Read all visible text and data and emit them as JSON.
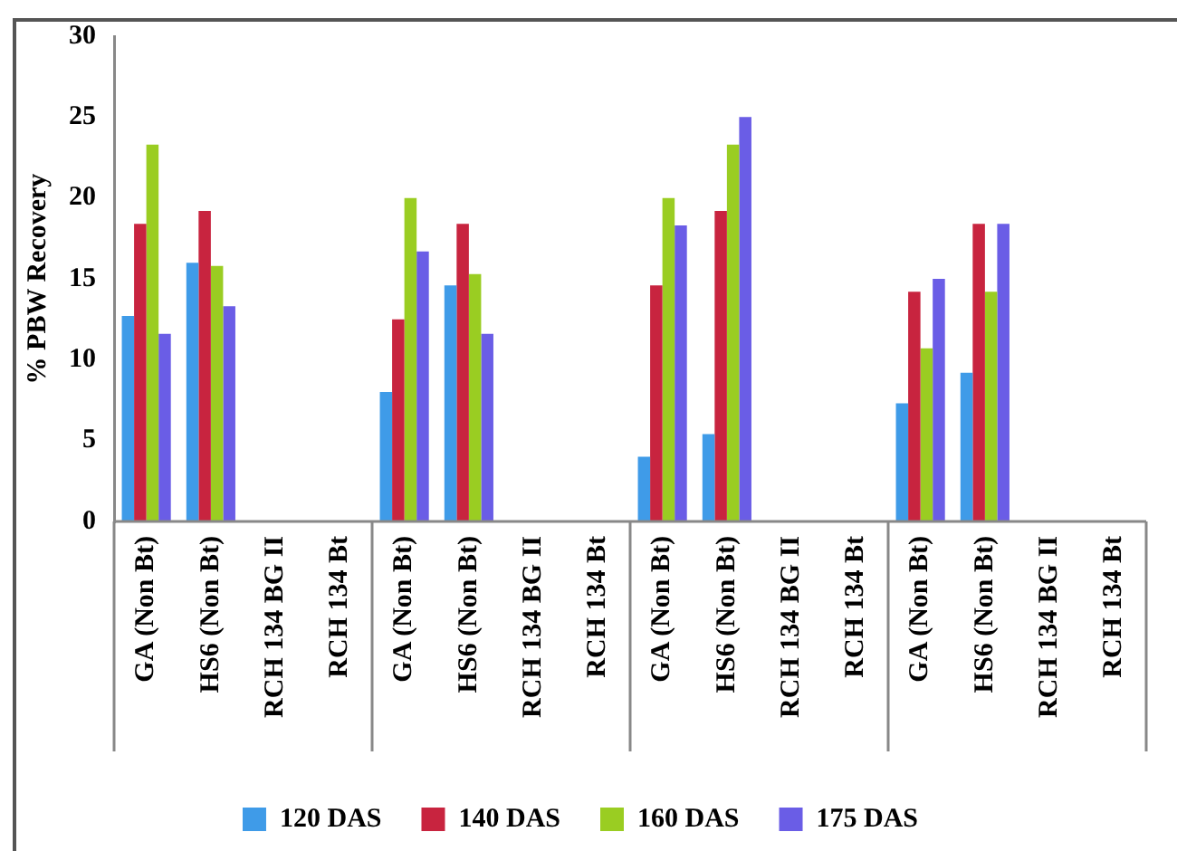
{
  "chart_data": {
    "type": "bar",
    "ylabel": "% PBW Recovery",
    "categories": [
      "GA (Non Bt)",
      "HS6 (Non Bt)",
      "RCH 134 BG II",
      "RCH 134 Bt",
      "GA (Non Bt)",
      "HS6 (Non Bt)",
      "RCH 134 BG II",
      "RCH 134 Bt",
      "GA (Non Bt)",
      "HS6 (Non Bt)",
      "RCH 134 BG II",
      "RCH 134 Bt",
      "GA (Non Bt)",
      "HS6 (Non Bt)",
      "RCH 134 BG II",
      "RCH 134 Bt"
    ],
    "series": [
      {
        "name": "120 DAS",
        "color": "#3f9be8",
        "values": [
          12.7,
          16.0,
          0,
          0,
          8.0,
          14.6,
          0,
          0,
          4.0,
          5.4,
          0,
          0,
          7.3,
          9.2,
          0,
          0
        ]
      },
      {
        "name": "140 DAS",
        "color": "#c8243f",
        "values": [
          18.4,
          19.2,
          0,
          0,
          12.5,
          18.4,
          0,
          0,
          14.6,
          19.2,
          0,
          0,
          14.2,
          18.4,
          0,
          0
        ]
      },
      {
        "name": "160 DAS",
        "color": "#9acd22",
        "values": [
          23.3,
          15.8,
          0,
          0,
          20.0,
          15.3,
          0,
          0,
          20.0,
          23.3,
          0,
          0,
          10.7,
          14.2,
          0,
          0
        ]
      },
      {
        "name": "175 DAS",
        "color": "#6a5de6",
        "values": [
          11.6,
          13.3,
          0,
          0,
          16.7,
          11.6,
          0,
          0,
          18.3,
          25.0,
          0,
          0,
          15.0,
          18.4,
          0,
          0
        ]
      }
    ],
    "ylim": [
      0,
      30
    ],
    "yticks": [
      0,
      5,
      10,
      15,
      20,
      25,
      30
    ],
    "grid": false,
    "legend": "bottom"
  }
}
